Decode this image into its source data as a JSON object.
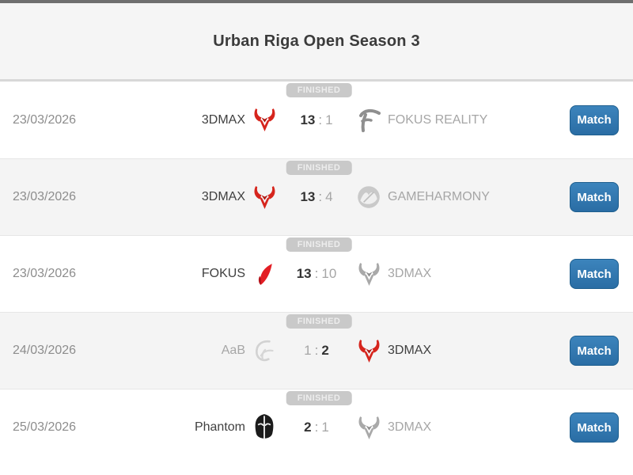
{
  "header": {
    "title": "Urban Riga Open Season 3"
  },
  "labels": {
    "status_finished": "FINISHED",
    "match_button": "Match",
    "score_separator": ":"
  },
  "colors": {
    "accent_red": "#d6251d",
    "button_blue": "#2e76ad",
    "button_border": "#1d5e8e",
    "badge_bg": "#c9c9c9",
    "row_alt_bg": "#f4f4f4",
    "winner_text": "#404040",
    "loser_text": "#a6a6a6",
    "top_border": "#6f6f6f"
  },
  "matches": [
    {
      "date": "23/03/2026",
      "status": "FINISHED",
      "team1": {
        "name": "3DMAX",
        "logo": "3dmax-red-icon",
        "winner": true
      },
      "score1": "13",
      "score2": "1",
      "team2": {
        "name": "FOKUS REALITY",
        "logo": "fokus-reality-icon",
        "winner": false
      },
      "button": "Match"
    },
    {
      "date": "23/03/2026",
      "status": "FINISHED",
      "team1": {
        "name": "3DMAX",
        "logo": "3dmax-red-icon",
        "winner": true
      },
      "score1": "13",
      "score2": "4",
      "team2": {
        "name": "GAMEHARMONY",
        "logo": "gameharmony-icon",
        "winner": false
      },
      "button": "Match"
    },
    {
      "date": "23/03/2026",
      "status": "FINISHED",
      "team1": {
        "name": "FOKUS",
        "logo": "fokus-icon",
        "winner": true
      },
      "score1": "13",
      "score2": "10",
      "team2": {
        "name": "3DMAX",
        "logo": "3dmax-gray-icon",
        "winner": false
      },
      "button": "Match"
    },
    {
      "date": "24/03/2026",
      "status": "FINISHED",
      "team1": {
        "name": "AaB",
        "logo": "aab-icon",
        "winner": false
      },
      "score1": "1",
      "score2": "2",
      "team2": {
        "name": "3DMAX",
        "logo": "3dmax-red-icon",
        "winner": true
      },
      "button": "Match"
    },
    {
      "date": "25/03/2026",
      "status": "FINISHED",
      "team1": {
        "name": "Phantom",
        "logo": "phantom-icon",
        "winner": true
      },
      "score1": "2",
      "score2": "1",
      "team2": {
        "name": "3DMAX",
        "logo": "3dmax-gray-icon",
        "winner": false
      },
      "button": "Match"
    }
  ]
}
